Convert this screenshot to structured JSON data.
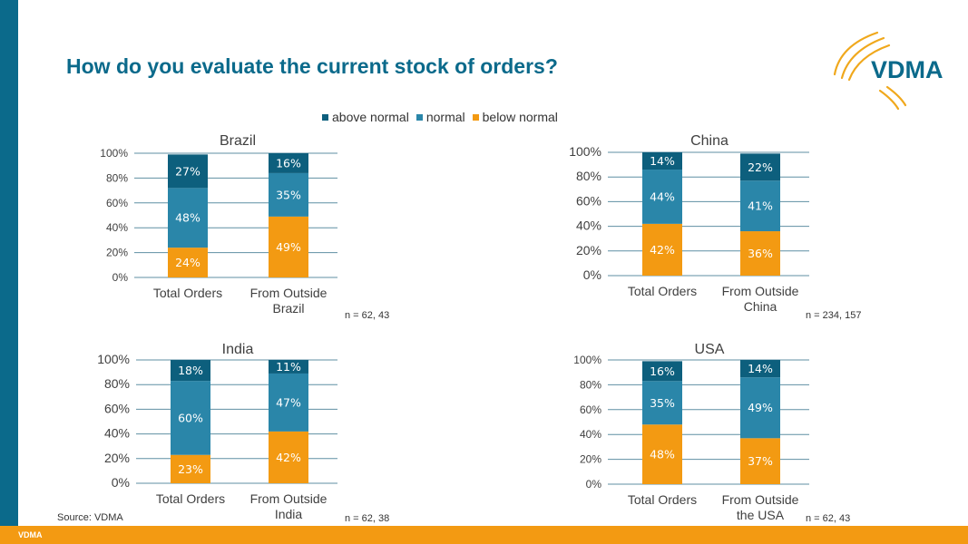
{
  "page": {
    "title": "How do you evaluate the current stock of orders?",
    "source": "Source: VDMA",
    "footer_label": "VDMA",
    "logo_text": "VDMA"
  },
  "legend": [
    {
      "name": "above normal",
      "color": "#0d5f7d"
    },
    {
      "name": "normal",
      "color": "#2a86a9"
    },
    {
      "name": "below normal",
      "color": "#f39a12"
    }
  ],
  "colors": {
    "above": "#0d5f7d",
    "normal": "#2a86a9",
    "below": "#f39a12",
    "brand": "#0b6a8b",
    "accent": "#f39a12"
  },
  "n_labels": [
    "n = 62, 43",
    "n = 234, 157",
    "n = 62, 38",
    "n = 62, 43"
  ],
  "chart_data": [
    {
      "type": "bar",
      "stacked": true,
      "title": "Brazil",
      "categories": [
        "Total Orders",
        "From Outside Brazil"
      ],
      "series": [
        {
          "name": "below normal",
          "values": [
            24,
            49
          ]
        },
        {
          "name": "normal",
          "values": [
            48,
            35
          ]
        },
        {
          "name": "above normal",
          "values": [
            27,
            16
          ]
        }
      ],
      "data_labels": [
        [
          "24%",
          "48%",
          "27%"
        ],
        [
          "49%",
          "35%",
          "16%"
        ]
      ],
      "yticks": [
        "0%",
        "20%",
        "40%",
        "60%",
        "80%",
        "100%"
      ],
      "ylim": [
        0,
        100
      ],
      "grid": true
    },
    {
      "type": "bar",
      "stacked": true,
      "title": "China",
      "categories": [
        "Total Orders",
        "From Outside China"
      ],
      "series": [
        {
          "name": "below normal",
          "values": [
            42,
            36
          ]
        },
        {
          "name": "normal",
          "values": [
            44,
            41
          ]
        },
        {
          "name": "above normal",
          "values": [
            14,
            22
          ]
        }
      ],
      "data_labels": [
        [
          "42%",
          "44%",
          "14%"
        ],
        [
          "36%",
          "41%",
          "22%"
        ]
      ],
      "yticks": [
        "0%",
        "20%",
        "40%",
        "60%",
        "80%",
        "100%"
      ],
      "ylim": [
        0,
        100
      ],
      "grid": true
    },
    {
      "type": "bar",
      "stacked": true,
      "title": "India",
      "categories": [
        "Total Orders",
        "From Outside India"
      ],
      "series": [
        {
          "name": "below normal",
          "values": [
            23,
            42
          ]
        },
        {
          "name": "normal",
          "values": [
            60,
            47
          ]
        },
        {
          "name": "above normal",
          "values": [
            18,
            11
          ]
        }
      ],
      "data_labels": [
        [
          "23%",
          "60%",
          "18%"
        ],
        [
          "42%",
          "47%",
          "11%"
        ]
      ],
      "yticks": [
        "0%",
        "20%",
        "40%",
        "60%",
        "80%",
        "100%"
      ],
      "ylim": [
        0,
        100
      ],
      "grid": true
    },
    {
      "type": "bar",
      "stacked": true,
      "title": "USA",
      "categories": [
        "Total Orders",
        "From Outside the USA"
      ],
      "series": [
        {
          "name": "below normal",
          "values": [
            48,
            37
          ]
        },
        {
          "name": "normal",
          "values": [
            35,
            49
          ]
        },
        {
          "name": "above normal",
          "values": [
            16,
            14
          ]
        }
      ],
      "data_labels": [
        [
          "48%",
          "35%",
          "16%"
        ],
        [
          "37%",
          "49%",
          "14%"
        ]
      ],
      "yticks": [
        "0%",
        "20%",
        "40%",
        "60%",
        "80%",
        "100%"
      ],
      "ylim": [
        0,
        100
      ],
      "grid": true
    }
  ]
}
